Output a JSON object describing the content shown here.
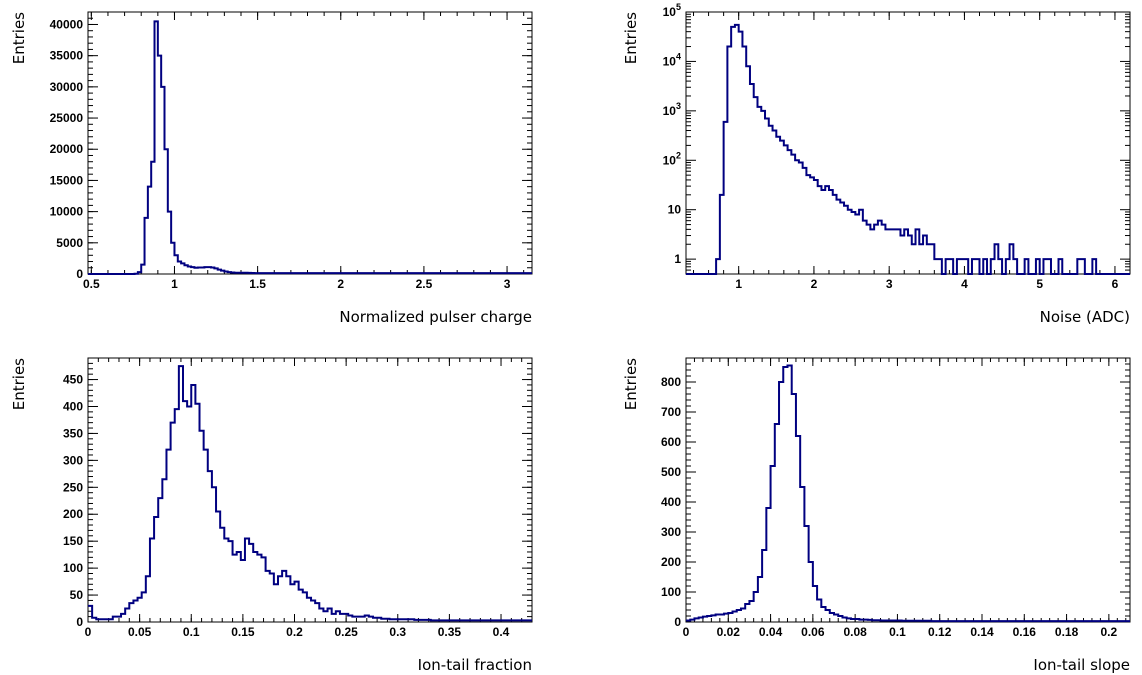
{
  "chart_data": [
    {
      "type": "histogram",
      "ylabel": "Entries",
      "xlabel": "Normalized pulser charge",
      "xlim": [
        0.48,
        3.15
      ],
      "ylim": [
        0,
        42000
      ],
      "log_y": false,
      "x_ticks": [
        0.5,
        1,
        1.5,
        2,
        2.5,
        3
      ],
      "x_tick_labels": [
        "0.5",
        "1",
        "1.5",
        "2",
        "2.5",
        "3"
      ],
      "y_ticks": [
        0,
        5000,
        10000,
        15000,
        20000,
        25000,
        30000,
        35000,
        40000
      ],
      "y_tick_labels": [
        "0",
        "5000",
        "10000",
        "15000",
        "20000",
        "25000",
        "30000",
        "35000",
        "40000"
      ],
      "bins": {
        "x": [
          0.48,
          0.5,
          0.52,
          0.54,
          0.56,
          0.58,
          0.6,
          0.62,
          0.64,
          0.66,
          0.68,
          0.7,
          0.72,
          0.74,
          0.76,
          0.78,
          0.8,
          0.82,
          0.84,
          0.86,
          0.88,
          0.9,
          0.92,
          0.94,
          0.96,
          0.98,
          1.0,
          1.02,
          1.04,
          1.06,
          1.08,
          1.1,
          1.12,
          1.14,
          1.16,
          1.18,
          1.2,
          1.22,
          1.24,
          1.26,
          1.28,
          1.3,
          1.32,
          1.34,
          1.36,
          1.38,
          1.4,
          1.42,
          1.44,
          1.46,
          1.48,
          1.5,
          1.52,
          1.54,
          1.56,
          1.58,
          1.6,
          1.62,
          1.64,
          1.66,
          1.68,
          1.7,
          1.72,
          1.74,
          1.76,
          1.78,
          1.8,
          1.82,
          1.84,
          1.86,
          1.88,
          1.9,
          1.92,
          1.94,
          1.96,
          1.98,
          2.0,
          2.02,
          2.04,
          2.06,
          2.08,
          2.1,
          2.12,
          2.14,
          2.16,
          2.18,
          2.2,
          2.22,
          2.24,
          2.26,
          2.28,
          2.3,
          2.32,
          2.34,
          2.36,
          2.38,
          2.4,
          2.42,
          2.44,
          2.46,
          2.48,
          2.5,
          2.52,
          2.54,
          2.56,
          2.58,
          2.6,
          2.62,
          2.64,
          2.66,
          2.68,
          2.7,
          2.72,
          2.74,
          2.76,
          2.78,
          2.8,
          2.82,
          2.84,
          2.86,
          2.88,
          2.9,
          2.92,
          2.94,
          2.96,
          2.98,
          3.0,
          3.02,
          3.04,
          3.06,
          3.08,
          3.1,
          3.12,
          3.14
        ],
        "y": [
          0,
          0,
          0,
          0,
          0,
          0,
          0,
          0,
          0,
          0,
          0,
          0,
          0,
          0,
          50,
          300,
          1500,
          9000,
          14000,
          18000,
          40500,
          35000,
          30000,
          20000,
          10000,
          5000,
          3000,
          2000,
          1700,
          1400,
          1200,
          1100,
          1000,
          1050,
          1050,
          1100,
          1100,
          1050,
          900,
          700,
          550,
          400,
          300,
          250,
          200,
          200,
          200,
          200,
          180,
          160,
          150,
          150,
          150,
          150,
          150,
          150,
          150,
          150,
          150,
          150,
          150,
          150,
          150,
          150,
          150,
          150,
          150,
          150,
          150,
          150,
          150,
          150,
          150,
          150,
          150,
          150,
          150,
          150,
          150,
          150,
          150,
          150,
          150,
          150,
          150,
          150,
          150,
          150,
          150,
          150,
          150,
          150,
          150,
          150,
          150,
          150,
          150,
          150,
          150,
          150,
          150,
          150,
          150,
          150,
          150,
          150,
          150,
          150,
          150,
          150,
          150,
          150,
          150,
          150,
          150,
          150,
          150,
          150,
          150,
          150,
          150,
          150,
          150,
          150,
          150,
          150,
          150,
          150,
          150,
          150,
          150,
          150,
          150,
          150
        ]
      }
    },
    {
      "type": "histogram",
      "ylabel": "Entries",
      "xlabel": "Noise (ADC)",
      "xlim": [
        0.3,
        6.2
      ],
      "ylim": [
        0.5,
        100000
      ],
      "log_y": true,
      "x_ticks": [
        1,
        2,
        3,
        4,
        5,
        6
      ],
      "x_tick_labels": [
        "1",
        "2",
        "3",
        "4",
        "5",
        "6"
      ],
      "y_ticks": [
        1,
        10,
        100,
        1000,
        10000,
        100000
      ],
      "y_tick_labels": [
        "1",
        "10",
        "10^2",
        "10^3",
        "10^4",
        "10^5"
      ],
      "bins": {
        "x": [
          0.3,
          0.35,
          0.4,
          0.45,
          0.5,
          0.55,
          0.6,
          0.65,
          0.7,
          0.75,
          0.8,
          0.85,
          0.9,
          0.95,
          1.0,
          1.05,
          1.1,
          1.15,
          1.2,
          1.25,
          1.3,
          1.35,
          1.4,
          1.45,
          1.5,
          1.55,
          1.6,
          1.65,
          1.7,
          1.75,
          1.8,
          1.85,
          1.9,
          1.95,
          2.0,
          2.05,
          2.1,
          2.15,
          2.2,
          2.25,
          2.3,
          2.35,
          2.4,
          2.45,
          2.5,
          2.55,
          2.6,
          2.65,
          2.7,
          2.75,
          2.8,
          2.85,
          2.9,
          2.95,
          3.0,
          3.05,
          3.1,
          3.15,
          3.2,
          3.25,
          3.3,
          3.35,
          3.4,
          3.45,
          3.5,
          3.55,
          3.6,
          3.65,
          3.7,
          3.75,
          3.8,
          3.85,
          3.9,
          3.95,
          4.0,
          4.05,
          4.1,
          4.15,
          4.2,
          4.25,
          4.3,
          4.35,
          4.4,
          4.45,
          4.5,
          4.55,
          4.6,
          4.65,
          4.7,
          4.75,
          4.8,
          4.85,
          4.9,
          4.95,
          5.0,
          5.05,
          5.1,
          5.15,
          5.2,
          5.25,
          5.3,
          5.35,
          5.4,
          5.45,
          5.5,
          5.55,
          5.6,
          5.65,
          5.7,
          5.75,
          5.8,
          5.85,
          5.9,
          5.95,
          6.0,
          6.05,
          6.1,
          6.15
        ],
        "y": [
          0,
          0,
          0,
          0,
          0,
          0,
          0,
          0,
          1,
          20,
          600,
          20000,
          50000,
          55000,
          40000,
          20000,
          8000,
          3500,
          1900,
          1200,
          1000,
          700,
          500,
          400,
          300,
          250,
          200,
          160,
          130,
          100,
          90,
          70,
          50,
          45,
          40,
          30,
          25,
          30,
          25,
          20,
          16,
          14,
          12,
          10,
          9,
          8,
          10,
          6,
          5,
          4,
          5,
          6,
          5,
          4,
          4,
          4,
          4,
          3,
          4,
          3,
          2,
          4,
          2,
          3,
          2,
          2,
          1,
          1,
          0,
          1,
          1,
          0,
          1,
          1,
          1,
          0,
          1,
          1,
          0,
          1,
          0,
          1,
          2,
          1,
          0,
          1,
          2,
          1,
          0,
          0,
          1,
          0,
          0,
          1,
          0,
          1,
          1,
          0,
          0,
          1,
          0,
          0,
          0,
          0,
          1,
          1,
          0,
          0,
          1,
          0,
          0,
          0,
          0,
          0,
          0,
          0,
          0,
          0
        ]
      }
    },
    {
      "type": "histogram",
      "ylabel": "Entries",
      "xlabel": "Ion-tail fraction",
      "xlim": [
        0,
        0.43
      ],
      "ylim": [
        0,
        490
      ],
      "log_y": false,
      "x_ticks": [
        0,
        0.05,
        0.1,
        0.15,
        0.2,
        0.25,
        0.3,
        0.35,
        0.4
      ],
      "x_tick_labels": [
        "0",
        "0.05",
        "0.1",
        "0.15",
        "0.2",
        "0.25",
        "0.3",
        "0.35",
        "0.4"
      ],
      "y_ticks": [
        0,
        50,
        100,
        150,
        200,
        250,
        300,
        350,
        400,
        450
      ],
      "y_tick_labels": [
        "0",
        "50",
        "100",
        "150",
        "200",
        "250",
        "300",
        "350",
        "400",
        "450"
      ],
      "bins": {
        "x": [
          0.0,
          0.004,
          0.008,
          0.012,
          0.016,
          0.02,
          0.024,
          0.028,
          0.032,
          0.036,
          0.04,
          0.044,
          0.048,
          0.052,
          0.056,
          0.06,
          0.064,
          0.068,
          0.072,
          0.076,
          0.08,
          0.084,
          0.088,
          0.092,
          0.096,
          0.1,
          0.104,
          0.108,
          0.112,
          0.116,
          0.12,
          0.124,
          0.128,
          0.132,
          0.136,
          0.14,
          0.144,
          0.148,
          0.152,
          0.156,
          0.16,
          0.164,
          0.168,
          0.172,
          0.176,
          0.18,
          0.184,
          0.188,
          0.192,
          0.196,
          0.2,
          0.204,
          0.208,
          0.212,
          0.216,
          0.22,
          0.224,
          0.228,
          0.232,
          0.236,
          0.24,
          0.244,
          0.248,
          0.252,
          0.256,
          0.26,
          0.264,
          0.268,
          0.272,
          0.276,
          0.28,
          0.284,
          0.288,
          0.292,
          0.296,
          0.3,
          0.304,
          0.308,
          0.312,
          0.316,
          0.32,
          0.324,
          0.328,
          0.332,
          0.336,
          0.34,
          0.344,
          0.348,
          0.352,
          0.356,
          0.36,
          0.364,
          0.368,
          0.372,
          0.376,
          0.38,
          0.384,
          0.388,
          0.392,
          0.396,
          0.4,
          0.404,
          0.408,
          0.412,
          0.416,
          0.42,
          0.424,
          0.428
        ],
        "y": [
          30,
          8,
          5,
          5,
          5,
          5,
          10,
          10,
          15,
          25,
          35,
          40,
          45,
          55,
          85,
          155,
          195,
          230,
          265,
          320,
          370,
          395,
          475,
          410,
          400,
          440,
          405,
          355,
          320,
          280,
          250,
          205,
          175,
          155,
          150,
          125,
          130,
          115,
          155,
          145,
          130,
          125,
          120,
          95,
          90,
          70,
          85,
          95,
          85,
          70,
          75,
          60,
          55,
          45,
          40,
          35,
          25,
          20,
          25,
          15,
          20,
          15,
          15,
          12,
          10,
          10,
          10,
          12,
          10,
          8,
          8,
          6,
          6,
          5,
          5,
          5,
          5,
          5,
          5,
          4,
          4,
          4,
          4,
          3,
          3,
          3,
          3,
          3,
          3,
          3,
          3,
          3,
          3,
          3,
          3,
          3,
          3,
          3,
          3,
          3,
          3,
          3,
          3,
          3,
          3,
          3,
          3,
          3
        ]
      }
    },
    {
      "type": "histogram",
      "ylabel": "Entries",
      "xlabel": "Ion-tail slope",
      "xlim": [
        0,
        0.21
      ],
      "ylim": [
        0,
        880
      ],
      "log_y": false,
      "x_ticks": [
        0,
        0.02,
        0.04,
        0.06,
        0.08,
        0.1,
        0.12,
        0.14,
        0.16,
        0.18,
        0.2
      ],
      "x_tick_labels": [
        "0",
        "0.02",
        "0.04",
        "0.06",
        "0.08",
        "0.1",
        "0.12",
        "0.14",
        "0.16",
        "0.18",
        "0.2"
      ],
      "y_ticks": [
        0,
        100,
        200,
        300,
        400,
        500,
        600,
        700,
        800
      ],
      "y_tick_labels": [
        "0",
        "100",
        "200",
        "300",
        "400",
        "500",
        "600",
        "700",
        "800"
      ],
      "bins": {
        "x": [
          0.0,
          0.002,
          0.004,
          0.006,
          0.008,
          0.01,
          0.012,
          0.014,
          0.016,
          0.018,
          0.02,
          0.022,
          0.024,
          0.026,
          0.028,
          0.03,
          0.032,
          0.034,
          0.036,
          0.038,
          0.04,
          0.042,
          0.044,
          0.046,
          0.048,
          0.05,
          0.052,
          0.054,
          0.056,
          0.058,
          0.06,
          0.062,
          0.064,
          0.066,
          0.068,
          0.07,
          0.072,
          0.074,
          0.076,
          0.078,
          0.08,
          0.082,
          0.084,
          0.086,
          0.088,
          0.09,
          0.092,
          0.094,
          0.096,
          0.098,
          0.1,
          0.102,
          0.104,
          0.106,
          0.108,
          0.11,
          0.112,
          0.114,
          0.116,
          0.118,
          0.12,
          0.122,
          0.124,
          0.126,
          0.128,
          0.13,
          0.132,
          0.134,
          0.136,
          0.138,
          0.14,
          0.142,
          0.144,
          0.146,
          0.148,
          0.15,
          0.152,
          0.154,
          0.156,
          0.158,
          0.16,
          0.162,
          0.164,
          0.166,
          0.168,
          0.17,
          0.172,
          0.174,
          0.176,
          0.178,
          0.18,
          0.182,
          0.184,
          0.186,
          0.188,
          0.19,
          0.192,
          0.194,
          0.196,
          0.198,
          0.2,
          0.202,
          0.204,
          0.206,
          0.208
        ],
        "y": [
          5,
          8,
          12,
          15,
          18,
          20,
          22,
          25,
          25,
          28,
          30,
          35,
          40,
          45,
          60,
          70,
          100,
          150,
          240,
          380,
          520,
          660,
          800,
          850,
          855,
          760,
          620,
          450,
          320,
          200,
          120,
          75,
          50,
          40,
          30,
          25,
          20,
          15,
          12,
          10,
          10,
          8,
          8,
          7,
          6,
          6,
          5,
          5,
          5,
          5,
          5,
          4,
          4,
          4,
          4,
          4,
          4,
          4,
          3,
          3,
          3,
          3,
          3,
          3,
          3,
          3,
          3,
          3,
          3,
          3,
          3,
          3,
          3,
          3,
          3,
          3,
          3,
          3,
          3,
          3,
          3,
          3,
          3,
          3,
          3,
          3,
          3,
          3,
          3,
          3,
          3,
          3,
          3,
          3,
          3,
          3,
          3,
          3,
          3,
          3,
          3,
          3,
          3,
          3,
          3
        ]
      }
    }
  ]
}
